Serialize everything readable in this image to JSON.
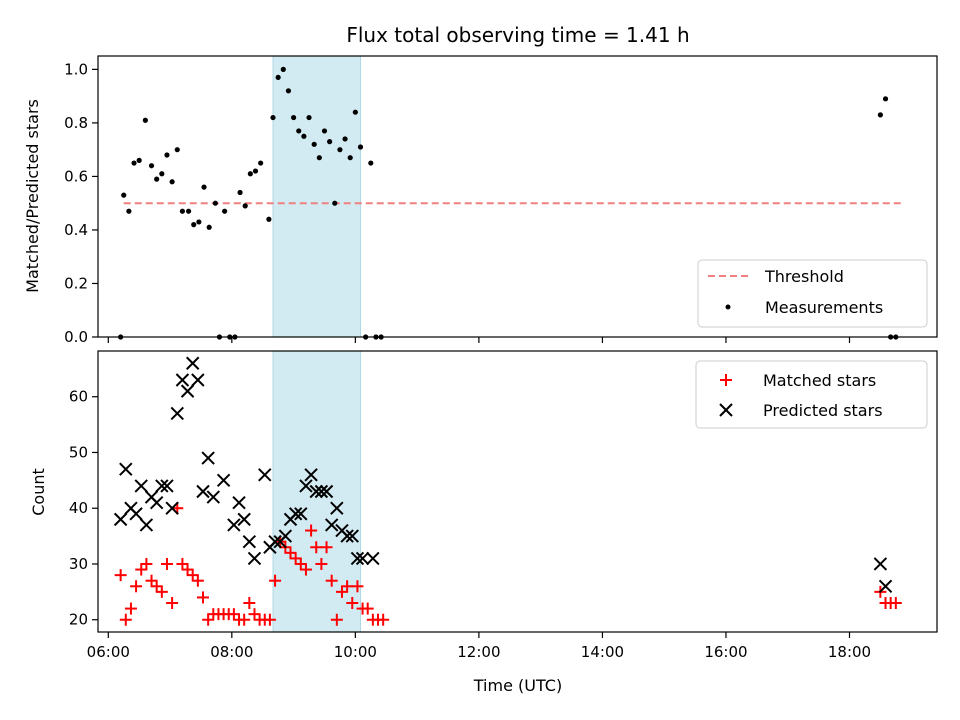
{
  "chart_data": [
    {
      "type": "scatter",
      "title": "Flux total observing time = 1.41 h",
      "ylabel": "Matched/Predicted stars",
      "xlabel": "",
      "xlim": [
        "05:50",
        "19:25"
      ],
      "ylim": [
        0,
        1.05
      ],
      "yticks": [
        "0.0",
        "0.2",
        "0.4",
        "0.6",
        "0.8",
        "1.0"
      ],
      "grid": false,
      "legend": "bottom-right",
      "highlight_span": [
        "08:40",
        "10:05"
      ],
      "threshold": {
        "name": "Threshold",
        "value": 0.5,
        "x_range": [
          "06:15",
          "18:50"
        ],
        "color": "#f08080",
        "style": "dashed"
      },
      "series": [
        {
          "name": "Measurements",
          "marker": "dot",
          "color": "#000000",
          "points": [
            [
              "06:12",
              0.0
            ],
            [
              "06:15",
              0.53
            ],
            [
              "06:20",
              0.47
            ],
            [
              "06:25",
              0.65
            ],
            [
              "06:30",
              0.66
            ],
            [
              "06:36",
              0.81
            ],
            [
              "06:42",
              0.64
            ],
            [
              "06:47",
              0.59
            ],
            [
              "06:52",
              0.61
            ],
            [
              "06:57",
              0.68
            ],
            [
              "07:02",
              0.58
            ],
            [
              "07:07",
              0.7
            ],
            [
              "07:12",
              0.47
            ],
            [
              "07:18",
              0.47
            ],
            [
              "07:23",
              0.42
            ],
            [
              "07:28",
              0.43
            ],
            [
              "07:33",
              0.56
            ],
            [
              "07:38",
              0.41
            ],
            [
              "07:44",
              0.5
            ],
            [
              "07:48",
              0.0
            ],
            [
              "07:53",
              0.47
            ],
            [
              "07:58",
              0.0
            ],
            [
              "08:03",
              0.0
            ],
            [
              "08:08",
              0.54
            ],
            [
              "08:13",
              0.49
            ],
            [
              "08:18",
              0.61
            ],
            [
              "08:23",
              0.62
            ],
            [
              "08:28",
              0.65
            ],
            [
              "08:36",
              0.44
            ],
            [
              "08:40",
              0.82
            ],
            [
              "08:45",
              0.97
            ],
            [
              "08:50",
              1.0
            ],
            [
              "08:55",
              0.92
            ],
            [
              "09:00",
              0.82
            ],
            [
              "09:05",
              0.77
            ],
            [
              "09:10",
              0.75
            ],
            [
              "09:15",
              0.82
            ],
            [
              "09:20",
              0.72
            ],
            [
              "09:25",
              0.67
            ],
            [
              "09:30",
              0.77
            ],
            [
              "09:35",
              0.73
            ],
            [
              "09:40",
              0.5
            ],
            [
              "09:45",
              0.7
            ],
            [
              "09:50",
              0.74
            ],
            [
              "09:55",
              0.67
            ],
            [
              "10:00",
              0.84
            ],
            [
              "10:05",
              0.71
            ],
            [
              "10:10",
              0.0
            ],
            [
              "10:15",
              0.65
            ],
            [
              "10:20",
              0.0
            ],
            [
              "10:25",
              0.0
            ],
            [
              "18:30",
              0.83
            ],
            [
              "18:35",
              0.89
            ],
            [
              "18:40",
              0.0
            ],
            [
              "18:45",
              0.0
            ]
          ]
        }
      ]
    },
    {
      "type": "scatter",
      "title": "",
      "ylabel": "Count",
      "xlabel": "Time (UTC)",
      "xlim": [
        "05:50",
        "19:25"
      ],
      "xticks": [
        "06:00",
        "08:00",
        "10:00",
        "12:00",
        "14:00",
        "16:00",
        "18:00"
      ],
      "ylim": [
        17.8,
        68.2
      ],
      "yticks": [
        "20",
        "30",
        "40",
        "50",
        "60"
      ],
      "grid": false,
      "legend": "top-right",
      "highlight_span": [
        "08:40",
        "10:05"
      ],
      "series": [
        {
          "name": "Matched stars",
          "marker": "plus",
          "color": "#ff0000",
          "points": [
            [
              "06:12",
              28
            ],
            [
              "06:17",
              20
            ],
            [
              "06:22",
              22
            ],
            [
              "06:27",
              26
            ],
            [
              "06:32",
              29
            ],
            [
              "06:37",
              30
            ],
            [
              "06:42",
              27
            ],
            [
              "06:47",
              26
            ],
            [
              "06:52",
              25
            ],
            [
              "06:57",
              30
            ],
            [
              "07:02",
              23
            ],
            [
              "07:07",
              40
            ],
            [
              "07:12",
              30
            ],
            [
              "07:17",
              29
            ],
            [
              "07:22",
              28
            ],
            [
              "07:27",
              27
            ],
            [
              "07:32",
              24
            ],
            [
              "07:37",
              20
            ],
            [
              "07:42",
              21
            ],
            [
              "07:47",
              21
            ],
            [
              "07:52",
              21
            ],
            [
              "07:57",
              21
            ],
            [
              "08:02",
              21
            ],
            [
              "08:07",
              20
            ],
            [
              "08:12",
              20
            ],
            [
              "08:17",
              23
            ],
            [
              "08:22",
              21
            ],
            [
              "08:27",
              20
            ],
            [
              "08:32",
              20
            ],
            [
              "08:37",
              20
            ],
            [
              "08:42",
              27
            ],
            [
              "08:47",
              34
            ],
            [
              "08:52",
              33
            ],
            [
              "08:57",
              32
            ],
            [
              "09:02",
              31
            ],
            [
              "09:07",
              30
            ],
            [
              "09:12",
              29
            ],
            [
              "09:17",
              36
            ],
            [
              "09:22",
              33
            ],
            [
              "09:27",
              30
            ],
            [
              "09:32",
              33
            ],
            [
              "09:37",
              27
            ],
            [
              "09:42",
              20
            ],
            [
              "09:47",
              25
            ],
            [
              "09:52",
              26
            ],
            [
              "09:57",
              23
            ],
            [
              "10:02",
              26
            ],
            [
              "10:07",
              22
            ],
            [
              "10:12",
              22
            ],
            [
              "10:17",
              20
            ],
            [
              "10:22",
              20
            ],
            [
              "10:27",
              20
            ],
            [
              "18:30",
              25
            ],
            [
              "18:35",
              23
            ],
            [
              "18:40",
              23
            ],
            [
              "18:45",
              23
            ]
          ]
        },
        {
          "name": "Predicted stars",
          "marker": "x",
          "color": "#000000",
          "points": [
            [
              "06:12",
              38
            ],
            [
              "06:17",
              47
            ],
            [
              "06:22",
              40
            ],
            [
              "06:27",
              39
            ],
            [
              "06:32",
              44
            ],
            [
              "06:37",
              37
            ],
            [
              "06:42",
              42
            ],
            [
              "06:47",
              41
            ],
            [
              "06:52",
              44
            ],
            [
              "06:57",
              44
            ],
            [
              "07:02",
              40
            ],
            [
              "07:07",
              57
            ],
            [
              "07:12",
              63
            ],
            [
              "07:17",
              61
            ],
            [
              "07:22",
              66
            ],
            [
              "07:27",
              63
            ],
            [
              "07:32",
              43
            ],
            [
              "07:37",
              49
            ],
            [
              "07:42",
              42
            ],
            [
              "07:52",
              45
            ],
            [
              "08:02",
              37
            ],
            [
              "08:07",
              41
            ],
            [
              "08:12",
              38
            ],
            [
              "08:17",
              34
            ],
            [
              "08:22",
              31
            ],
            [
              "08:32",
              46
            ],
            [
              "08:37",
              33
            ],
            [
              "08:42",
              34
            ],
            [
              "08:47",
              34
            ],
            [
              "08:52",
              35
            ],
            [
              "08:57",
              38
            ],
            [
              "09:02",
              39
            ],
            [
              "09:07",
              39
            ],
            [
              "09:12",
              44
            ],
            [
              "09:17",
              46
            ],
            [
              "09:22",
              43
            ],
            [
              "09:27",
              43
            ],
            [
              "09:32",
              43
            ],
            [
              "09:37",
              37
            ],
            [
              "09:42",
              40
            ],
            [
              "09:47",
              36
            ],
            [
              "09:52",
              35
            ],
            [
              "09:57",
              35
            ],
            [
              "10:02",
              31
            ],
            [
              "10:07",
              31
            ],
            [
              "10:17",
              31
            ],
            [
              "18:30",
              30
            ],
            [
              "18:35",
              26
            ]
          ]
        }
      ]
    }
  ],
  "colors": {
    "span": "#add8e6",
    "threshold": "#f08080",
    "matched": "#ff0000",
    "predicted": "#000000"
  }
}
